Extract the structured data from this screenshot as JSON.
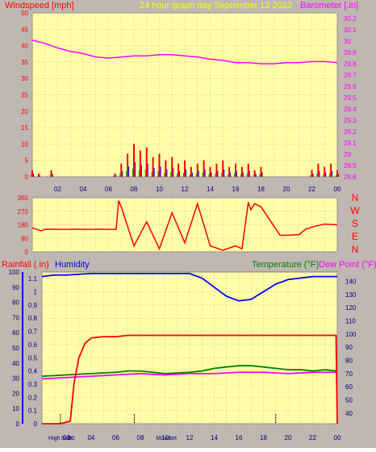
{
  "colors": {
    "background": "#bfb7b1",
    "plot_bg": "#ffffa8",
    "grid": "#e8b0b0",
    "wind_label": "#ff0000",
    "title_label": "#ffff00",
    "baro_label": "#ff00ff",
    "rain": "#ff0000",
    "humidity": "#0000ff",
    "temperature": "#008000",
    "dewpoint": "#ff00ff",
    "wind_dir": "#ff0000",
    "windspeed": "#ff0000",
    "gust_blue": "#0000ff",
    "gust_green": "#00a000"
  },
  "header": {
    "windspeed_label": "Windspeed [mph]",
    "title": "24 hour graph day   September 12 2022",
    "barometer_label": "Barometer [.in]"
  },
  "bottom_header": {
    "rain_label": "Rainfall (.in)",
    "humidity_label": "Humidity",
    "temperature_label": "Temperature (°F)",
    "dewpoint_label": "Dew Point (°F)"
  },
  "compass_labels": [
    "N",
    "W",
    "S",
    "E",
    "N"
  ],
  "bottom_markers": [
    {
      "label": "High",
      "hour": 1.0
    },
    {
      "label": "Side",
      "hour": 2.0
    },
    {
      "label": "60",
      "hour": 2.4
    },
    {
      "label": "Mo",
      "hour": 9.6
    },
    {
      "label": "on",
      "hour": 10.2
    },
    {
      "label": "Set",
      "hour": 10.6
    }
  ],
  "chart_data": [
    {
      "type": "line",
      "x_ticks": [
        "02",
        "04",
        "06",
        "08",
        "10",
        "12",
        "14",
        "16",
        "18",
        "20",
        "22",
        "00"
      ],
      "left_axis": {
        "label": "Windspeed [mph]",
        "ticks": [
          "0",
          "5",
          "10",
          "15",
          "20",
          "25",
          "30",
          "35",
          "40",
          "45",
          "50"
        ],
        "ylim": [
          0,
          50
        ]
      },
      "right_axis": {
        "label": "Barometer [.in]",
        "ticks": [
          "28.8",
          "28.9",
          "29",
          "29.1",
          "29.2",
          "29.3",
          "29.4",
          "29.5",
          "29.6",
          "29.7",
          "29.8",
          "29.9",
          "30",
          "30.1",
          "30.2"
        ],
        "ylim": [
          28.8,
          30.25
        ]
      },
      "series": [
        {
          "name": "Barometer [.in]",
          "axis": "right",
          "x": [
            0,
            1,
            2,
            3,
            4,
            5,
            6,
            7,
            8,
            9,
            10,
            11,
            12,
            13,
            14,
            15,
            16,
            17,
            18,
            19,
            20,
            21,
            22,
            23,
            24
          ],
          "values": [
            30.01,
            29.98,
            29.94,
            29.91,
            29.89,
            29.86,
            29.85,
            29.86,
            29.87,
            29.87,
            29.88,
            29.88,
            29.87,
            29.86,
            29.84,
            29.83,
            29.81,
            29.81,
            29.8,
            29.8,
            29.81,
            29.81,
            29.82,
            29.82,
            29.81
          ]
        },
        {
          "name": "Windspeed [mph]",
          "axis": "left",
          "x": [
            0,
            0.5,
            1,
            1.5,
            2,
            2.5,
            3,
            3.5,
            4,
            4.5,
            5,
            5.5,
            6,
            6.5,
            7,
            7.5,
            8,
            8.5,
            9,
            9.5,
            10,
            10.5,
            11,
            11.5,
            12,
            12.5,
            13,
            13.5,
            14,
            14.5,
            15,
            15.5,
            16,
            16.5,
            17,
            17.5,
            18,
            18.5,
            19,
            19.5,
            20,
            20.5,
            21,
            21.5,
            22,
            22.5,
            23,
            23.5,
            24
          ],
          "values": [
            2,
            1,
            0,
            2,
            0,
            0,
            0,
            0,
            0,
            0,
            0,
            0,
            0,
            1,
            4,
            7,
            10,
            8,
            9,
            6,
            7,
            5,
            6,
            4,
            5,
            3,
            4,
            5,
            3,
            4,
            5,
            3,
            4,
            3,
            4,
            2,
            3,
            0,
            0,
            0,
            0,
            0,
            0,
            0,
            2,
            4,
            3,
            4,
            2
          ]
        }
      ]
    },
    {
      "type": "line",
      "x_ticks": [
        "02",
        "04",
        "06",
        "08",
        "10",
        "12",
        "14",
        "16",
        "18",
        "20",
        "22",
        "00"
      ],
      "left_axis": {
        "label": "",
        "ticks": [
          "0",
          "90",
          "180",
          "270",
          "360"
        ],
        "ylim": [
          0,
          360
        ]
      },
      "series": [
        {
          "name": "",
          "x": [
            0,
            0.7,
            1,
            6.6,
            6.8,
            7,
            8,
            9,
            10,
            11,
            12,
            13,
            14,
            15,
            16,
            16.5,
            17,
            17.2,
            17.5,
            18,
            19.5,
            20,
            21,
            21.5,
            22,
            23,
            24
          ],
          "values": [
            160,
            140,
            150,
            150,
            340,
            300,
            40,
            200,
            20,
            260,
            60,
            320,
            40,
            10,
            40,
            20,
            330,
            280,
            320,
            300,
            110,
            110,
            115,
            150,
            165,
            185,
            180
          ]
        }
      ]
    },
    {
      "type": "line",
      "x_ticks": [
        "02",
        "04",
        "06",
        "08",
        "10",
        "12",
        "14",
        "16",
        "18",
        "20",
        "22",
        "00"
      ],
      "left_axis": {
        "label": "Rainfall (.in)",
        "ticks": [
          "0",
          "0.1",
          "0.2",
          "0.3",
          "0.4",
          "0.5",
          "0.6",
          "0.7",
          "0.8",
          "0.9",
          "1",
          "1.1"
        ],
        "ylim": [
          0,
          1.15
        ]
      },
      "left_axis_2": {
        "label": "Humidity",
        "ticks": [
          "0",
          "10",
          "20",
          "30",
          "40",
          "50",
          "60",
          "70",
          "80",
          "90",
          "100"
        ],
        "ylim": [
          0,
          100
        ]
      },
      "right_axis": {
        "label": "Temperature (°F)",
        "ticks": [
          "40",
          "50",
          "60",
          "70",
          "80",
          "90",
          "100",
          "110",
          "120",
          "130",
          "140"
        ],
        "ylim": [
          32,
          147
        ]
      },
      "series": [
        {
          "name": "Rainfall (.in)",
          "axis": "left",
          "x": [
            0,
            1.5,
            2.3,
            2.6,
            3,
            3.5,
            4,
            5,
            6,
            7,
            8,
            12,
            16,
            20,
            23.9,
            24
          ],
          "values": [
            0,
            0,
            0.02,
            0.3,
            0.5,
            0.61,
            0.65,
            0.66,
            0.66,
            0.67,
            0.67,
            0.67,
            0.67,
            0.67,
            0.67,
            0
          ]
        },
        {
          "name": "Humidity",
          "axis": "left2",
          "x": [
            0,
            1,
            2,
            4,
            6,
            8,
            10,
            12,
            13,
            14,
            15,
            16,
            17,
            18,
            19,
            20,
            21,
            22,
            24
          ],
          "values": [
            97,
            98,
            98,
            99,
            99,
            99,
            99,
            99,
            96,
            90,
            84,
            81,
            82,
            87,
            92,
            95,
            96,
            97,
            97
          ]
        },
        {
          "name": "Temperature (°F)",
          "axis": "right",
          "x": [
            0,
            2,
            4,
            6,
            7,
            8,
            9,
            10,
            12,
            13,
            14,
            15,
            16,
            17,
            18,
            19,
            20,
            21,
            22,
            23,
            24
          ],
          "values": [
            68,
            69,
            70,
            71,
            72,
            72,
            71,
            70,
            71,
            72,
            74,
            75,
            76,
            76,
            75,
            74,
            73,
            73,
            72,
            73,
            72
          ]
        },
        {
          "name": "Dew Point (°F)",
          "axis": "right",
          "x": [
            0,
            2,
            4,
            6,
            8,
            10,
            12,
            14,
            16,
            18,
            20,
            22,
            24
          ],
          "values": [
            66,
            67,
            68,
            69,
            70,
            69,
            70,
            70,
            71,
            71,
            70,
            71,
            71
          ]
        }
      ]
    }
  ]
}
